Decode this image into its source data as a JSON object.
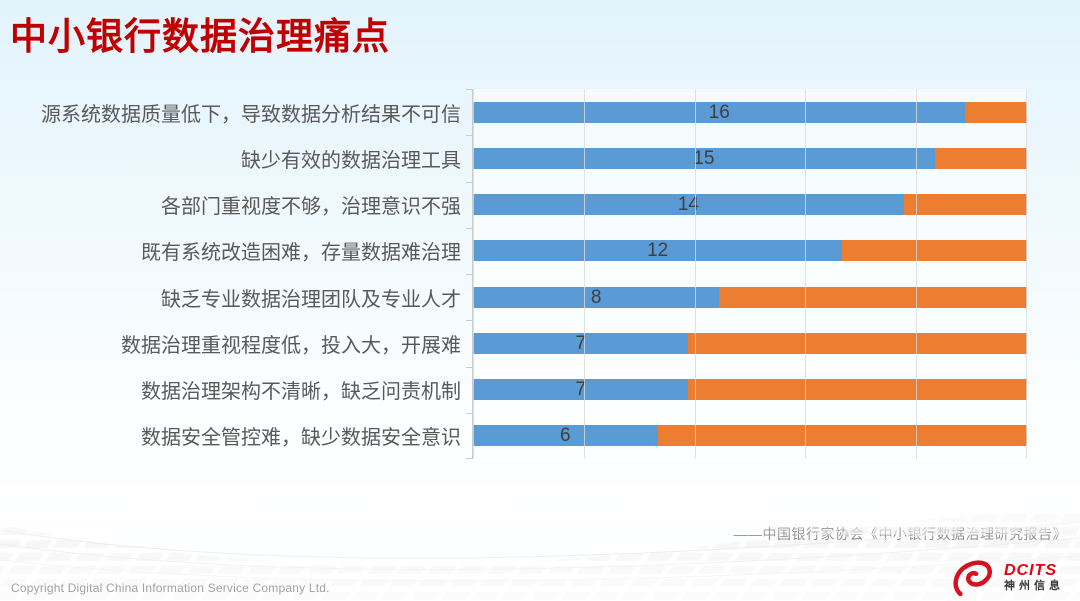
{
  "slide": {
    "title": "中小银行数据治理痛点",
    "source": "——中国银行家协会《中小银行数据治理研究报告》",
    "footer": {
      "copyright": "Copyright  Digital China Information Service Company Ltd."
    },
    "logo": {
      "brand": "DCITS",
      "subtitle": "神州信息",
      "icon": "swirl-comet-icon"
    }
  },
  "colors": {
    "series_blue": "#5B9BD5",
    "series_orange": "#ED7D31",
    "title_red": "#C00000",
    "gridline": "#D9D9D9",
    "axis": "#C6CBCE",
    "category_text": "#595959",
    "value_text": "#3F3F3F",
    "logo_red": "#E60012"
  },
  "chart_data": {
    "type": "bar",
    "orientation": "horizontal",
    "stacked": true,
    "title": "",
    "xlabel": "",
    "ylabel": "",
    "categories": [
      "源系统数据质量低下，导致数据分析结果不可信",
      "缺少有效的数据治理工具",
      "各部门重视度不够，治理意识不强",
      "既有系统改造困难，存量数据难治理",
      "缺乏专业数据治理团队及专业人才",
      "数据治理重视程度低，投入大，开展难",
      "数据治理架构不清晰，缺乏问责机制",
      "数据安全管控难，缺少数据安全意识"
    ],
    "series": [
      {
        "name": "blue",
        "color": "#5B9BD5",
        "values": [
          16,
          15,
          14,
          12,
          8,
          7,
          7,
          6
        ],
        "labeled": true
      },
      {
        "name": "orange",
        "color": "#ED7D31",
        "values": [
          2,
          3,
          4,
          6,
          10,
          11,
          11,
          12
        ],
        "labeled": false
      }
    ],
    "stack_total": 18,
    "xlim": [
      0,
      18
    ],
    "gridline_count": 6,
    "grid": "vertical",
    "legend": "none",
    "value_labels": [
      16,
      15,
      14,
      12,
      8,
      7,
      7,
      6
    ]
  }
}
